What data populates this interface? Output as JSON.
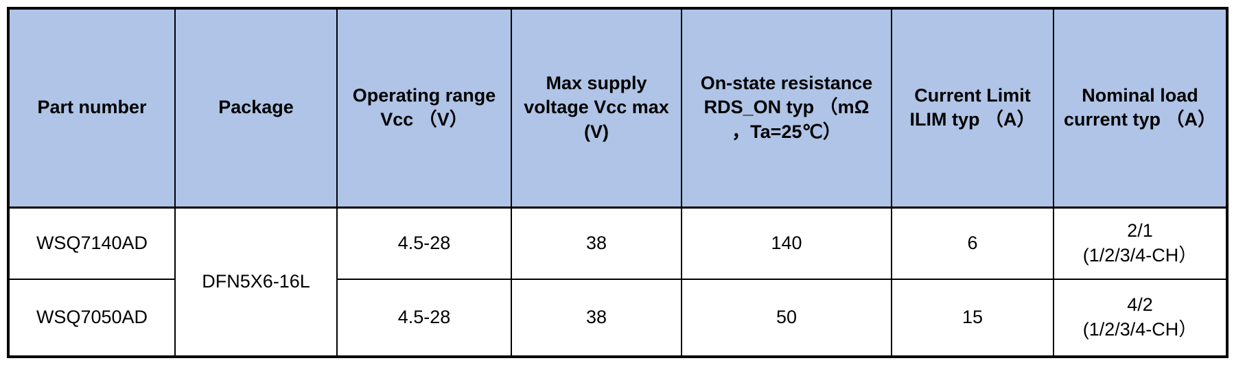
{
  "table": {
    "headers": [
      "Part number",
      "Package",
      "Operating range\nVcc （V）",
      "Max supply\nvoltage Vcc max\n(V)",
      "On-state resistance\nRDS_ON typ （mΩ\n，Ta=25℃）",
      "Current Limit\nILIM typ （A）",
      "Nominal load\ncurrent typ （A）"
    ],
    "package_shared": "DFN5X6-16L",
    "rows": [
      {
        "part_number": "WSQ7140AD",
        "operating_range_vcc_v": "4.5-28",
        "max_supply_voltage_vcc_max_v": "38",
        "on_state_resistance_rds_on_typ_mohm": "140",
        "current_limit_ilim_typ_a": "6",
        "nominal_load_current_typ_a": "2/1\n(1/2/3/4-CH）"
      },
      {
        "part_number": "WSQ7050AD",
        "operating_range_vcc_v": "4.5-28",
        "max_supply_voltage_vcc_max_v": "38",
        "on_state_resistance_rds_on_typ_mohm": "50",
        "current_limit_ilim_typ_a": "15",
        "nominal_load_current_typ_a": "4/2\n(1/2/3/4-CH）"
      }
    ]
  },
  "colors": {
    "header_bg": "#AFC4E6",
    "border": "#000000",
    "body_bg": "#FFFFFF",
    "text": "#000000"
  }
}
